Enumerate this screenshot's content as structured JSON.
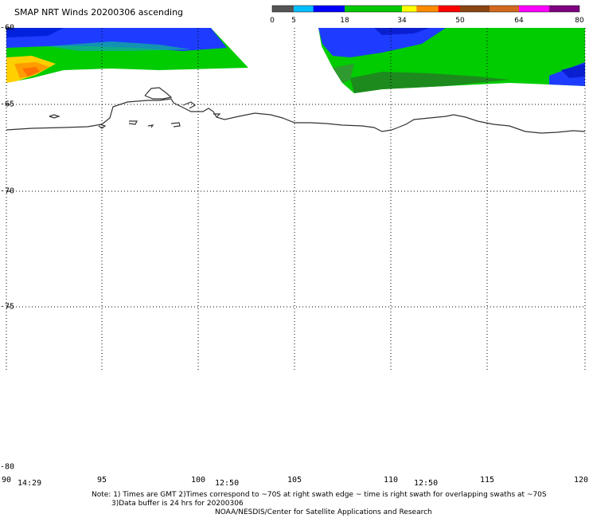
{
  "title": "SMAP NRT Winds 20200306 ascending",
  "colorbar": {
    "ticks": [
      "0",
      "5",
      "18",
      "34",
      "50",
      "64",
      "80"
    ],
    "segments": [
      {
        "from": 0,
        "to": 5,
        "color": "#555555"
      },
      {
        "from": 5,
        "to": 10,
        "color": "#00bfff"
      },
      {
        "from": 10,
        "to": 18,
        "color": "#0000ff"
      },
      {
        "from": 18,
        "to": 34,
        "color": "#00c800"
      },
      {
        "from": 34,
        "to": 38,
        "color": "#ffff00"
      },
      {
        "from": 38,
        "to": 44,
        "color": "#ff8c00"
      },
      {
        "from": 44,
        "to": 50,
        "color": "#ff0000"
      },
      {
        "from": 50,
        "to": 57,
        "color": "#8b4513"
      },
      {
        "from": 57,
        "to": 64,
        "color": "#d2691e"
      },
      {
        "from": 64,
        "to": 72,
        "color": "#ff00ff"
      },
      {
        "from": 72,
        "to": 80,
        "color": "#800080"
      }
    ]
  },
  "lat_labels": [
    "-60",
    "-65",
    "-70",
    "-75",
    "-80"
  ],
  "lon_labels": [
    "90",
    "95",
    "100",
    "105",
    "110",
    "115",
    "120"
  ],
  "swath_times": [
    "14:29",
    "12:50",
    "12:50"
  ],
  "notes": {
    "line1": "Note: 1) Times are GMT 2)Times correspond to ~70S at right swath edge ~ time is right swath for overlapping swaths at ~70S",
    "line2": "3)Data buffer is 24 hrs for 20200306",
    "line3": "NOAA/NESDIS/Center for Satellite Applications and Research"
  }
}
